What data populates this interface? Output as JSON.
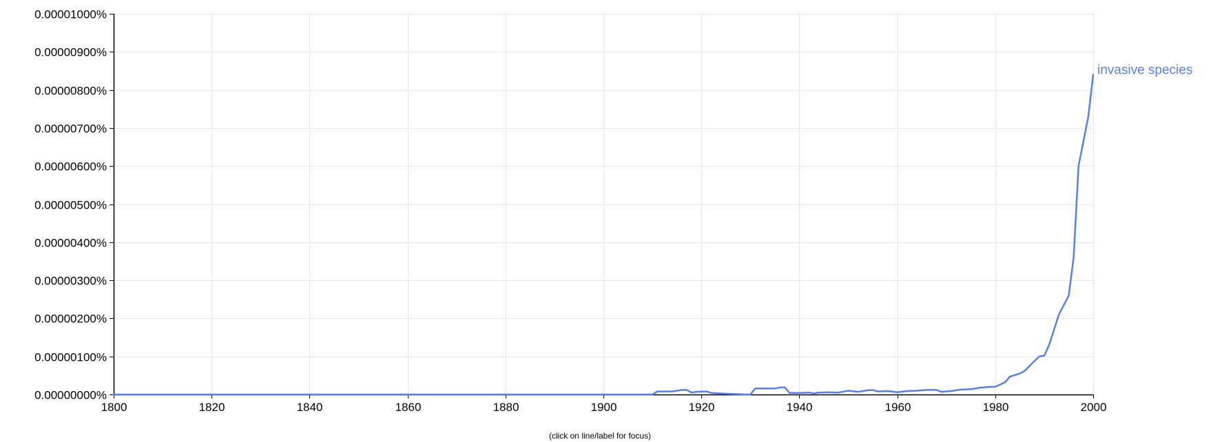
{
  "chart_data": {
    "type": "line",
    "title": "",
    "xlabel": "",
    "ylabel": "",
    "xlim": [
      1800,
      2000
    ],
    "ylim": [
      0,
      1e-05
    ],
    "x_ticks": [
      1800,
      1820,
      1840,
      1860,
      1880,
      1900,
      1920,
      1940,
      1960,
      1980,
      2000
    ],
    "x_tick_labels": [
      "1800",
      "1820",
      "1840",
      "1860",
      "1880",
      "1900",
      "1920",
      "1940",
      "1960",
      "1980",
      "2000"
    ],
    "y_ticks": [
      0,
      1e-06,
      2e-06,
      3e-06,
      4e-06,
      5e-06,
      6e-06,
      7e-06,
      8e-06,
      9e-06,
      1e-05
    ],
    "y_tick_labels": [
      "0.00000000%",
      "0.00000100%",
      "0.00000200%",
      "0.00000300%",
      "0.00000400%",
      "0.00000500%",
      "0.00000600%",
      "0.00000700%",
      "0.00000800%",
      "0.00000900%",
      "0.00001000%"
    ],
    "grid": true,
    "series": [
      {
        "name": "invasive species",
        "color": "#5b7fe0",
        "x": [
          1800,
          1910,
          1911,
          1914,
          1916,
          1917,
          1918,
          1919,
          1921,
          1922,
          1925,
          1929,
          1930,
          1931,
          1935,
          1936,
          1937,
          1938,
          1940,
          1942,
          1943,
          1944,
          1946,
          1948,
          1950,
          1952,
          1954,
          1955,
          1956,
          1958,
          1960,
          1962,
          1964,
          1966,
          1968,
          1969,
          1971,
          1973,
          1975,
          1977,
          1979,
          1980,
          1982,
          1983,
          1985,
          1986,
          1987,
          1988,
          1989,
          1990,
          1991,
          1992,
          1993,
          1995,
          1996,
          1997,
          1999,
          2000
        ],
        "values": [
          0,
          0,
          8e-08,
          8e-08,
          1.2e-07,
          1.2e-07,
          5e-08,
          7e-08,
          8e-08,
          4e-08,
          2e-08,
          0,
          0,
          1.6e-07,
          1.6e-07,
          1.8e-07,
          1.9e-07,
          4e-08,
          4e-08,
          5e-08,
          3e-08,
          5e-08,
          6e-08,
          5e-08,
          1e-07,
          7e-08,
          1.1e-07,
          1.2e-07,
          8e-08,
          9e-08,
          6e-08,
          9e-08,
          1e-07,
          1.2e-07,
          1.2e-07,
          7e-08,
          9e-08,
          1.3e-07,
          1.4e-07,
          1.8e-07,
          2e-07,
          2e-07,
          3.2e-07,
          4.7e-07,
          5.5e-07,
          6.2e-07,
          7.5e-07,
          8.8e-07,
          1e-06,
          1.02e-06,
          1.3e-06,
          1.7e-06,
          2.1e-06,
          2.6e-06,
          3.6e-06,
          6e-06,
          7.3e-06,
          8.4e-06
        ]
      }
    ],
    "annotations": [
      "(click on line/label for focus)"
    ]
  }
}
